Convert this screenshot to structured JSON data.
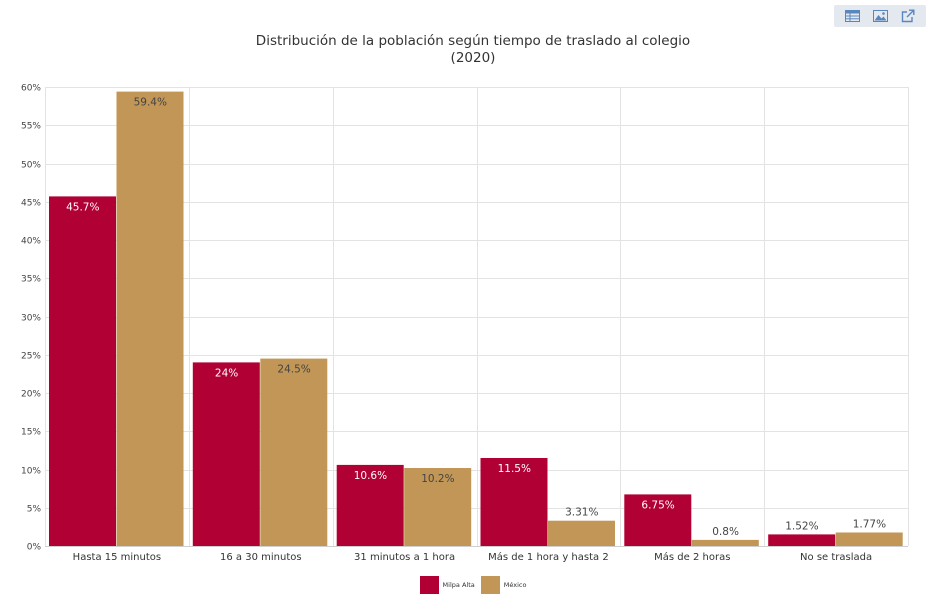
{
  "toolbar": {
    "icons": [
      "table-icon",
      "image-icon",
      "external-link-icon"
    ],
    "color": "#5a86c0"
  },
  "colors": {
    "series": [
      "#b00034",
      "#c19656"
    ],
    "grid": "#e3e3e3",
    "label_inside": "#ffffff",
    "label_outside": "#444444"
  },
  "chart_data": {
    "type": "bar",
    "title": "Distribución de la población según tiempo de traslado al colegio",
    "subtitle": "(2020)",
    "categories": [
      "Hasta 15 minutos",
      "16 a 30 minutos",
      "31 minutos a 1 hora",
      "Más de 1 hora y hasta 2",
      "Más de 2 horas",
      "No se traslada"
    ],
    "series": [
      {
        "name": "Milpa Alta",
        "values": [
          45.7,
          24,
          10.6,
          11.5,
          6.75,
          1.52
        ],
        "labels": [
          "45.7%",
          "24%",
          "10.6%",
          "11.5%",
          "6.75%",
          "1.52%"
        ]
      },
      {
        "name": "México",
        "values": [
          59.4,
          24.5,
          10.2,
          3.31,
          0.8,
          1.77
        ],
        "labels": [
          "59.4%",
          "24.5%",
          "10.2%",
          "3.31%",
          "0.8%",
          "1.77%"
        ]
      }
    ],
    "ylim": [
      0,
      60
    ],
    "yticks": [
      0,
      5,
      10,
      15,
      20,
      25,
      30,
      35,
      40,
      45,
      50,
      55,
      60
    ],
    "ytick_labels": [
      "0%",
      "5%",
      "10%",
      "15%",
      "20%",
      "25%",
      "30%",
      "35%",
      "40%",
      "45%",
      "50%",
      "55%",
      "60%"
    ],
    "xlabel": "",
    "ylabel": "",
    "grid": true,
    "legend": "bottom-center"
  }
}
